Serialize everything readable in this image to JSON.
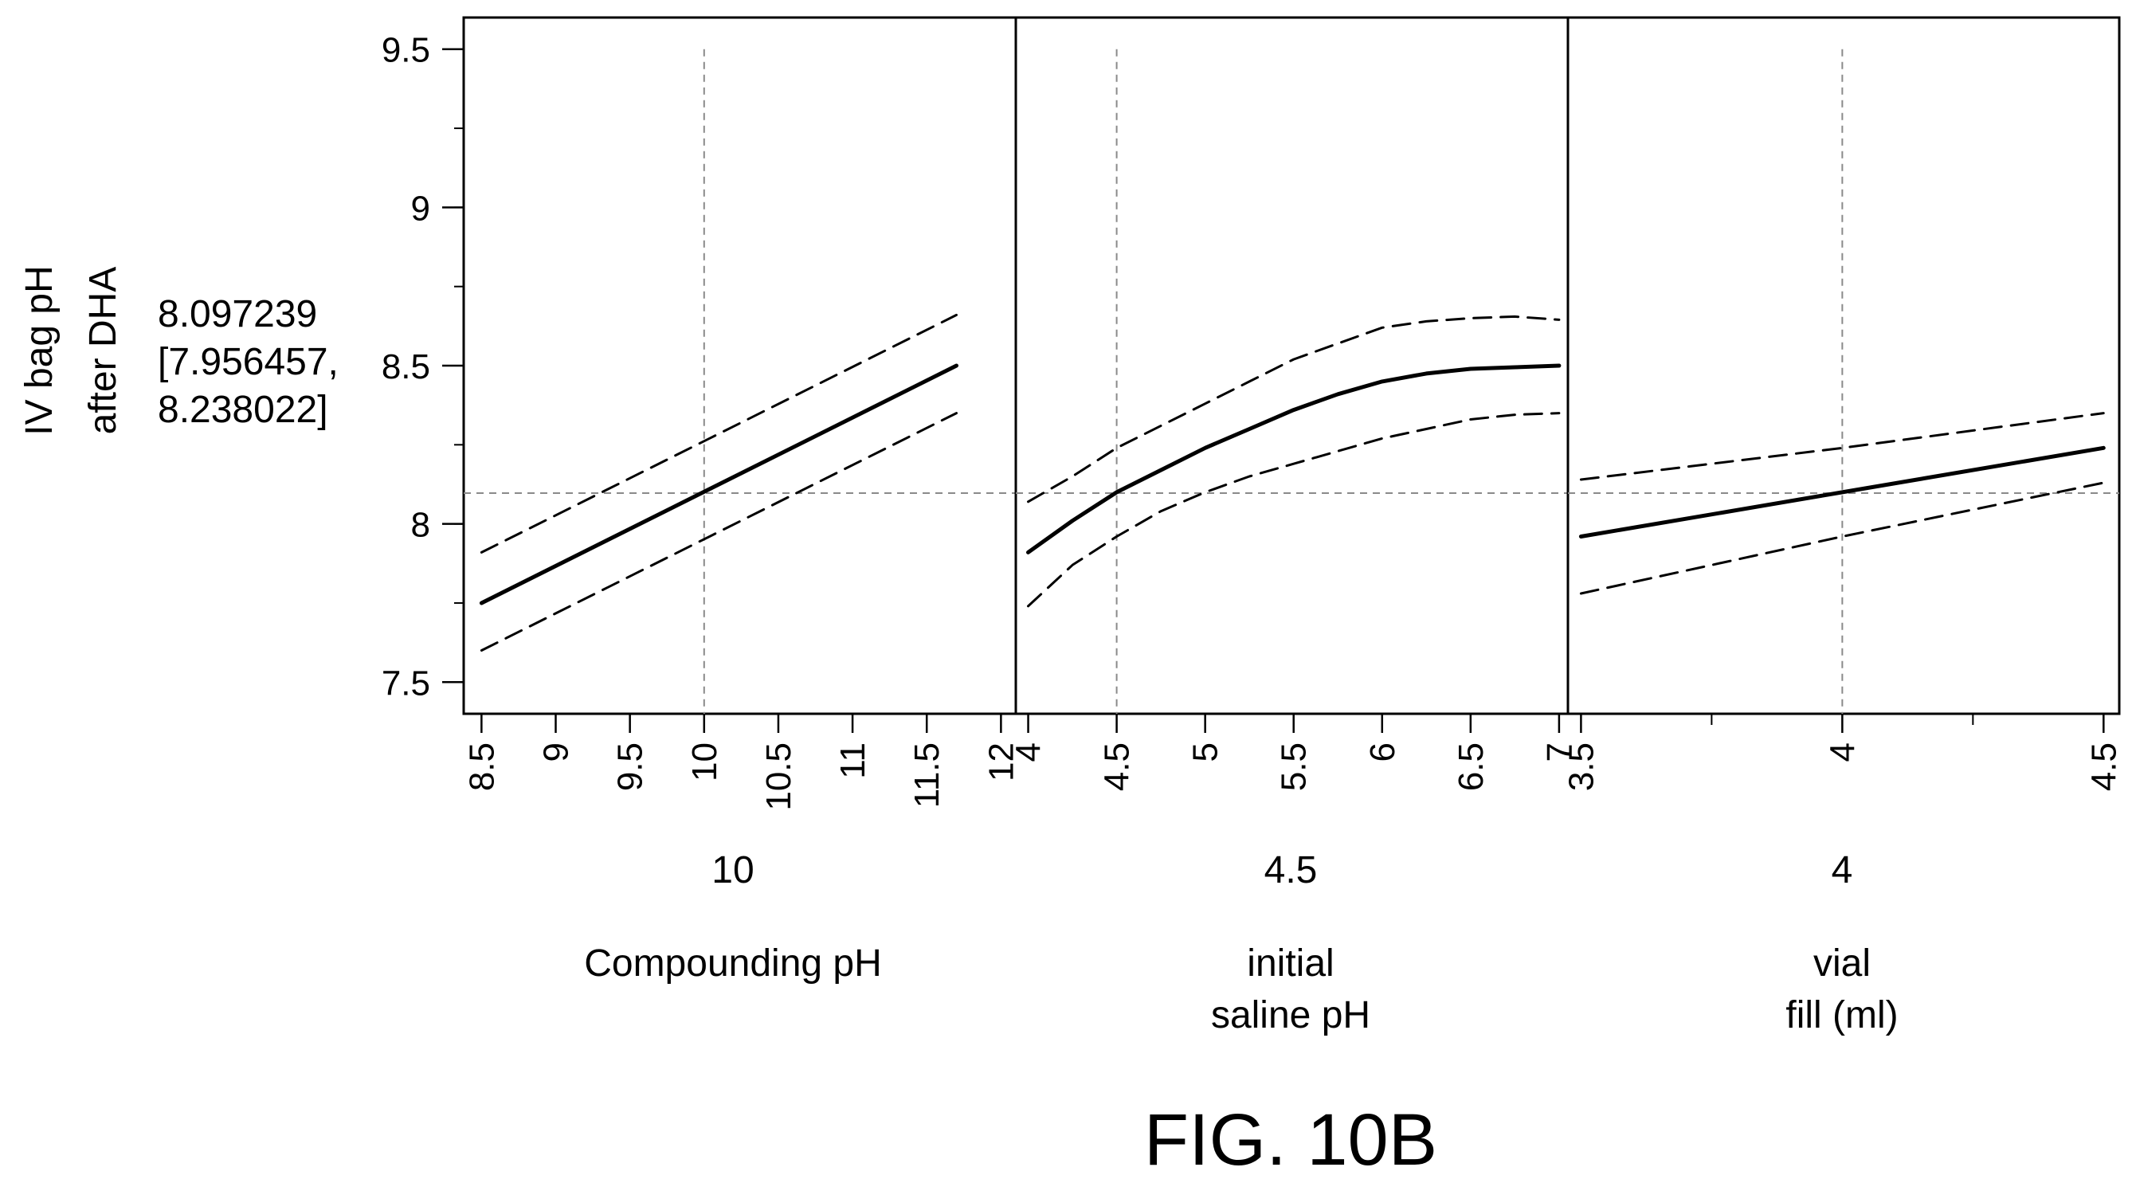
{
  "figure_label": "FIG. 10B",
  "ylabel_lines": [
    "IV bag pH",
    "after DHA"
  ],
  "prediction_lines": [
    "8.097239",
    "[7.956457,",
    "8.238022]"
  ],
  "chart_data": {
    "type": "line",
    "title": "",
    "prediction": 8.097239,
    "prediction_ci": [
      7.956457,
      8.238022
    ],
    "y": {
      "label": "IV bag pH after DHA",
      "ylim": [
        7.4,
        9.6
      ],
      "ticks": [
        7.5,
        8,
        8.5,
        9,
        9.5
      ],
      "tick_labels": [
        "7.5",
        "8",
        "8.5",
        "9",
        "9.5"
      ],
      "minor_ticks": [
        7.5,
        7.75,
        8,
        8.25,
        8.5,
        8.75,
        9,
        9.25,
        9.5
      ]
    },
    "panels": [
      {
        "name": "compounding",
        "xlabel_lines": [
          "Compounding pH"
        ],
        "current_value": "10",
        "ref_x": 10,
        "xlim": [
          8.38,
          12.1
        ],
        "ticks": [
          8.5,
          9,
          9.5,
          10,
          10.5,
          11,
          11.5,
          12
        ],
        "tick_labels": [
          "8.5",
          "9",
          "9.5",
          "10",
          "10.5",
          "11",
          "11.5",
          "12"
        ],
        "minor_ticks": [],
        "series": [
          {
            "name": "",
            "style": "solid",
            "x": [
              8.5,
              11.7
            ],
            "y": [
              7.75,
              8.5
            ]
          },
          {
            "name": "",
            "style": "dashed",
            "x": [
              8.5,
              11.7
            ],
            "y": [
              7.6,
              8.35
            ]
          },
          {
            "name": "",
            "style": "dashed",
            "x": [
              8.5,
              11.7
            ],
            "y": [
              7.91,
              8.66
            ]
          }
        ]
      },
      {
        "name": "saline",
        "xlabel_lines": [
          "initial",
          "saline pH"
        ],
        "current_value": "4.5",
        "ref_x": 4.5,
        "xlim": [
          3.93,
          7.05
        ],
        "ticks": [
          4,
          4.5,
          5,
          5.5,
          6,
          6.5,
          7
        ],
        "tick_labels": [
          "4",
          "4.5",
          "5",
          "5.5",
          "6",
          "6.5",
          "7"
        ],
        "minor_ticks": [],
        "series": [
          {
            "name": "",
            "style": "solid",
            "x": [
              4,
              4.25,
              4.5,
              4.75,
              5,
              5.25,
              5.5,
              5.75,
              6,
              6.25,
              6.5,
              6.75,
              7
            ],
            "y": [
              7.91,
              8.01,
              8.1,
              8.17,
              8.24,
              8.3,
              8.36,
              8.41,
              8.45,
              8.475,
              8.49,
              8.495,
              8.5
            ]
          },
          {
            "name": "",
            "style": "dashed",
            "x": [
              4,
              4.25,
              4.5,
              4.75,
              5,
              5.25,
              5.5,
              5.75,
              6,
              6.25,
              6.5,
              6.75,
              7
            ],
            "y": [
              7.74,
              7.87,
              7.96,
              8.04,
              8.1,
              8.15,
              8.19,
              8.23,
              8.27,
              8.3,
              8.33,
              8.345,
              8.35
            ]
          },
          {
            "name": "",
            "style": "dashed",
            "x": [
              4,
              4.25,
              4.5,
              4.75,
              5,
              5.25,
              5.5,
              5.75,
              6,
              6.25,
              6.5,
              6.75,
              7
            ],
            "y": [
              8.07,
              8.15,
              8.24,
              8.31,
              8.38,
              8.45,
              8.52,
              8.57,
              8.62,
              8.64,
              8.65,
              8.655,
              8.645
            ]
          }
        ]
      },
      {
        "name": "vial",
        "xlabel_lines": [
          "vial",
          "fill (ml)"
        ],
        "current_value": "4",
        "ref_x": 4,
        "xlim": [
          3.475,
          4.53
        ],
        "ticks": [
          3.5,
          4,
          4.5
        ],
        "tick_labels": [
          "3.5",
          "4",
          "4.5"
        ],
        "minor_ticks": [
          3.75,
          4.25
        ],
        "series": [
          {
            "name": "",
            "style": "solid",
            "x": [
              3.5,
              4,
              4.5
            ],
            "y": [
              7.96,
              8.1,
              8.24
            ]
          },
          {
            "name": "",
            "style": "dashed",
            "x": [
              3.5,
              4,
              4.5
            ],
            "y": [
              7.78,
              7.96,
              8.13
            ]
          },
          {
            "name": "",
            "style": "dashed",
            "x": [
              3.5,
              4,
              4.5
            ],
            "y": [
              8.14,
              8.24,
              8.35
            ]
          }
        ]
      }
    ]
  }
}
